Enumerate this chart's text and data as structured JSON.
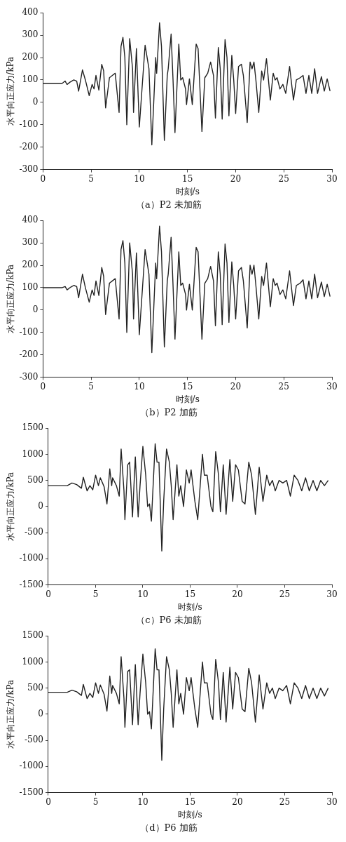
{
  "chart_data": [
    {
      "type": "line",
      "title": "（a）P2 未加筋",
      "xlabel": "时刻/s",
      "ylabel": "水平向正应力/kPa",
      "xlim": [
        0,
        30
      ],
      "xticks": [
        0,
        5,
        10,
        15,
        20,
        25,
        30
      ],
      "ylim": [
        -300,
        400
      ],
      "yticks": [
        -300,
        -200,
        -100,
        0,
        100,
        200,
        300,
        400
      ],
      "grid": false,
      "x": [
        0,
        2.0,
        2.3,
        2.5,
        2.8,
        3.2,
        3.5,
        3.7,
        4.1,
        4.4,
        4.8,
        5.1,
        5.3,
        5.5,
        5.8,
        6.1,
        6.3,
        6.5,
        6.9,
        7.2,
        7.5,
        7.9,
        8.1,
        8.3,
        8.5,
        8.7,
        9.0,
        9.3,
        9.4,
        9.7,
        10.0,
        10.6,
        11.0,
        11.3,
        11.6,
        11.7,
        11.8,
        12.1,
        12.3,
        12.6,
        12.9,
        13.0,
        13.3,
        13.5,
        13.7,
        14.1,
        14.3,
        14.5,
        14.8,
        14.9,
        15.2,
        15.5,
        15.9,
        16.1,
        16.5,
        16.8,
        17.1,
        17.4,
        17.7,
        17.9,
        18.2,
        18.4,
        18.6,
        18.9,
        19.1,
        19.3,
        19.6,
        19.8,
        20.0,
        20.3,
        20.6,
        20.8,
        21.2,
        21.5,
        21.7,
        21.9,
        22.1,
        22.4,
        22.7,
        22.9,
        23.2,
        23.6,
        23.9,
        24.1,
        24.3,
        24.6,
        24.9,
        25.2,
        25.6,
        26.0,
        26.3,
        26.7,
        27.0,
        27.3,
        27.6,
        27.9,
        28.2,
        28.5,
        28.9,
        29.2,
        29.5,
        29.8
      ],
      "series": [
        {
          "color": "#222222",
          "values": [
            85,
            85,
            95,
            80,
            90,
            100,
            95,
            50,
            145,
            100,
            30,
            80,
            60,
            120,
            55,
            170,
            140,
            -25,
            110,
            120,
            130,
            -45,
            250,
            290,
            200,
            -100,
            285,
            150,
            -45,
            240,
            -110,
            255,
            150,
            -190,
            100,
            200,
            130,
            355,
            250,
            -170,
            120,
            150,
            305,
            100,
            -135,
            260,
            100,
            110,
            60,
            -10,
            105,
            -10,
            260,
            240,
            -130,
            110,
            130,
            180,
            120,
            -70,
            245,
            150,
            -75,
            280,
            200,
            -60,
            210,
            100,
            -50,
            160,
            170,
            120,
            -90,
            180,
            150,
            180,
            100,
            -45,
            140,
            100,
            195,
            10,
            130,
            100,
            110,
            60,
            80,
            40,
            160,
            10,
            100,
            110,
            120,
            40,
            120,
            40,
            150,
            40,
            115,
            50,
            105,
            50
          ]
        }
      ]
    },
    {
      "type": "line",
      "title": "（b）P2 加筋",
      "xlabel": "时刻/s",
      "ylabel": "水平向正应力/kPa",
      "xlim": [
        0,
        30
      ],
      "xticks": [
        0,
        5,
        10,
        15,
        20,
        25,
        30
      ],
      "ylim": [
        -300,
        400
      ],
      "yticks": [
        -300,
        -200,
        -100,
        0,
        100,
        200,
        300,
        400
      ],
      "grid": false,
      "x": [
        0,
        2.0,
        2.3,
        2.5,
        2.8,
        3.2,
        3.5,
        3.7,
        4.1,
        4.4,
        4.8,
        5.1,
        5.3,
        5.5,
        5.8,
        6.1,
        6.3,
        6.5,
        6.9,
        7.2,
        7.5,
        7.9,
        8.1,
        8.3,
        8.5,
        8.7,
        9.0,
        9.3,
        9.4,
        9.7,
        10.0,
        10.6,
        11.0,
        11.3,
        11.6,
        11.7,
        11.8,
        12.1,
        12.3,
        12.6,
        12.9,
        13.0,
        13.3,
        13.5,
        13.7,
        14.1,
        14.3,
        14.5,
        14.8,
        14.9,
        15.2,
        15.5,
        15.9,
        16.1,
        16.5,
        16.8,
        17.1,
        17.4,
        17.7,
        17.9,
        18.2,
        18.4,
        18.6,
        18.9,
        19.1,
        19.3,
        19.6,
        19.8,
        20.0,
        20.3,
        20.6,
        20.8,
        21.2,
        21.5,
        21.7,
        21.9,
        22.1,
        22.4,
        22.7,
        22.9,
        23.2,
        23.6,
        23.9,
        24.1,
        24.3,
        24.6,
        24.9,
        25.2,
        25.6,
        26.0,
        26.3,
        26.7,
        27.0,
        27.3,
        27.6,
        27.9,
        28.2,
        28.5,
        28.9,
        29.2,
        29.5,
        29.8
      ],
      "series": [
        {
          "color": "#222222",
          "values": [
            100,
            100,
            105,
            90,
            100,
            110,
            105,
            55,
            160,
            100,
            35,
            90,
            65,
            130,
            65,
            190,
            150,
            -20,
            120,
            130,
            140,
            -40,
            270,
            310,
            210,
            -100,
            300,
            160,
            -40,
            255,
            -110,
            270,
            160,
            -190,
            110,
            210,
            140,
            375,
            260,
            -165,
            130,
            160,
            325,
            110,
            -130,
            260,
            110,
            120,
            70,
            0,
            115,
            0,
            280,
            260,
            -130,
            120,
            140,
            195,
            130,
            -70,
            260,
            160,
            -65,
            295,
            210,
            -55,
            215,
            110,
            -40,
            175,
            190,
            130,
            -80,
            200,
            160,
            200,
            110,
            -40,
            150,
            110,
            210,
            15,
            140,
            110,
            120,
            70,
            90,
            50,
            175,
            20,
            110,
            120,
            135,
            50,
            130,
            50,
            160,
            55,
            125,
            60,
            115,
            60
          ]
        }
      ]
    },
    {
      "type": "line",
      "title": "（c）P6 未加筋",
      "xlabel": "时刻/s",
      "ylabel": "水平向正应力/kPa",
      "xlim": [
        0,
        30
      ],
      "xticks": [
        0,
        5,
        10,
        15,
        20,
        25,
        30
      ],
      "ylim": [
        -1500,
        1500
      ],
      "yticks": [
        -1500,
        -1000,
        -500,
        0,
        500,
        1000,
        1500
      ],
      "grid": false,
      "x": [
        0,
        2.0,
        2.5,
        3.0,
        3.5,
        3.7,
        4.1,
        4.4,
        4.7,
        5.0,
        5.3,
        5.5,
        5.9,
        6.2,
        6.5,
        6.7,
        6.8,
        7.2,
        7.5,
        7.7,
        8.0,
        8.1,
        8.4,
        8.6,
        8.9,
        9.2,
        9.5,
        9.7,
        10.0,
        10.3,
        10.5,
        10.7,
        10.9,
        11.3,
        11.5,
        11.7,
        12.0,
        12.2,
        12.5,
        12.8,
        13.0,
        13.2,
        13.6,
        13.8,
        14.0,
        14.3,
        14.6,
        14.9,
        15.1,
        15.5,
        15.8,
        16.3,
        16.5,
        16.8,
        17.2,
        17.4,
        17.7,
        18.0,
        18.2,
        18.5,
        18.8,
        19.2,
        19.5,
        19.8,
        20.1,
        20.5,
        20.8,
        21.2,
        21.5,
        21.9,
        22.3,
        22.7,
        23.1,
        23.4,
        23.7,
        24.0,
        24.4,
        24.8,
        25.2,
        25.6,
        26.0,
        26.4,
        26.8,
        27.2,
        27.6,
        28.0,
        28.4,
        28.8,
        29.2,
        29.6
      ],
      "series": [
        {
          "color": "#222222",
          "values": [
            400,
            400,
            450,
            420,
            350,
            560,
            300,
            400,
            320,
            600,
            400,
            550,
            380,
            50,
            720,
            400,
            550,
            400,
            200,
            1100,
            300,
            -250,
            800,
            850,
            -200,
            950,
            -200,
            400,
            1150,
            600,
            0,
            50,
            -280,
            1200,
            850,
            850,
            -850,
            100,
            1100,
            850,
            400,
            -250,
            800,
            200,
            400,
            0,
            700,
            450,
            700,
            100,
            -250,
            1000,
            600,
            600,
            0,
            -100,
            1050,
            600,
            -100,
            800,
            -150,
            900,
            100,
            800,
            700,
            100,
            50,
            850,
            600,
            -150,
            750,
            100,
            600,
            400,
            500,
            300,
            500,
            450,
            500,
            200,
            600,
            500,
            300,
            550,
            300,
            500,
            300,
            500,
            400,
            500
          ]
        }
      ]
    },
    {
      "type": "line",
      "title": "（d）P6 加筋",
      "xlabel": "时刻/s",
      "ylabel": "水平向正应力/kPa",
      "xlim": [
        0,
        30
      ],
      "xticks": [
        0,
        5,
        10,
        15,
        20,
        25,
        30
      ],
      "ylim": [
        -1500,
        1500
      ],
      "yticks": [
        -1500,
        -1000,
        -500,
        0,
        500,
        1000,
        1500
      ],
      "grid": false,
      "x": [
        0,
        2.0,
        2.5,
        3.0,
        3.5,
        3.7,
        4.1,
        4.4,
        4.7,
        5.0,
        5.3,
        5.5,
        5.9,
        6.2,
        6.5,
        6.7,
        6.8,
        7.2,
        7.5,
        7.7,
        8.0,
        8.1,
        8.4,
        8.6,
        8.9,
        9.2,
        9.5,
        9.7,
        10.0,
        10.3,
        10.5,
        10.7,
        10.9,
        11.3,
        11.5,
        11.7,
        12.0,
        12.2,
        12.5,
        12.8,
        13.0,
        13.2,
        13.6,
        13.8,
        14.0,
        14.3,
        14.6,
        14.9,
        15.1,
        15.5,
        15.8,
        16.3,
        16.5,
        16.8,
        17.2,
        17.4,
        17.7,
        18.0,
        18.2,
        18.5,
        18.8,
        19.2,
        19.5,
        19.8,
        20.1,
        20.5,
        20.8,
        21.2,
        21.5,
        21.9,
        22.3,
        22.7,
        23.1,
        23.4,
        23.7,
        24.0,
        24.4,
        24.8,
        25.2,
        25.6,
        26.0,
        26.4,
        26.8,
        27.2,
        27.6,
        28.0,
        28.4,
        28.8,
        29.2,
        29.6
      ],
      "series": [
        {
          "color": "#222222",
          "values": [
            420,
            420,
            460,
            430,
            360,
            570,
            300,
            400,
            320,
            600,
            400,
            560,
            380,
            60,
            730,
            400,
            550,
            400,
            200,
            1100,
            300,
            -250,
            820,
            850,
            -200,
            950,
            -200,
            400,
            1150,
            600,
            0,
            50,
            -280,
            1250,
            850,
            850,
            -880,
            100,
            1100,
            850,
            400,
            -250,
            850,
            200,
            400,
            0,
            700,
            450,
            700,
            100,
            -250,
            1000,
            600,
            600,
            0,
            -100,
            1050,
            600,
            -100,
            800,
            -150,
            900,
            100,
            800,
            700,
            100,
            50,
            880,
            600,
            -150,
            750,
            100,
            600,
            400,
            500,
            300,
            500,
            450,
            550,
            200,
            600,
            500,
            300,
            550,
            300,
            500,
            300,
            500,
            350,
            500
          ]
        }
      ]
    }
  ]
}
